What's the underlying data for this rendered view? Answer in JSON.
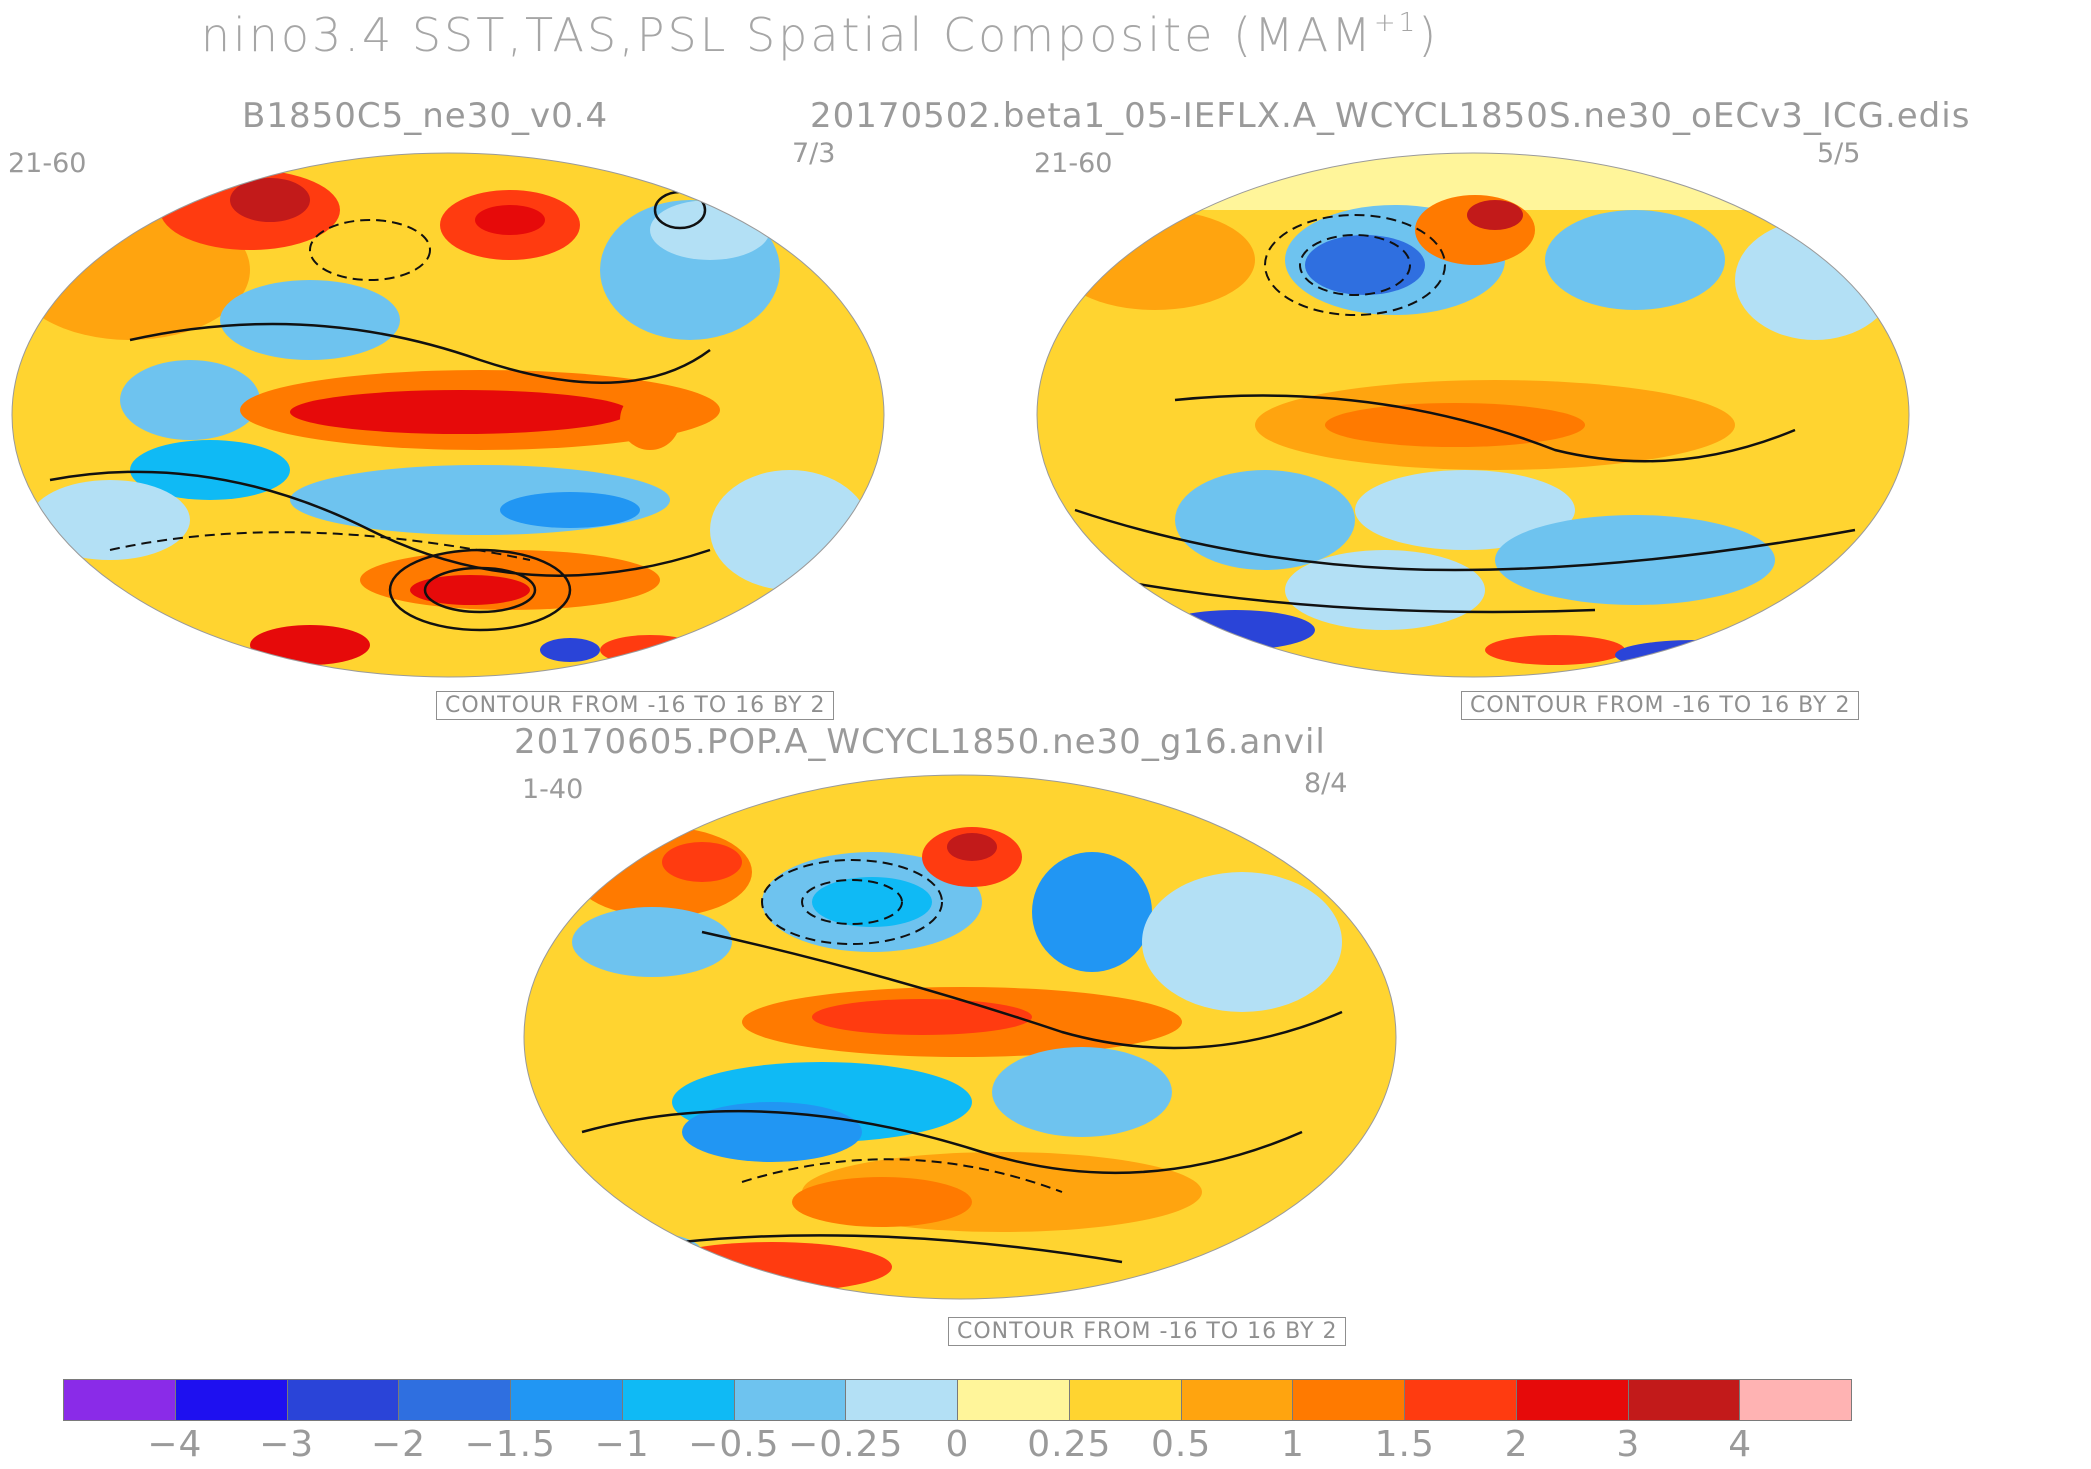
{
  "figure": {
    "title": "nino3.4 SST,TAS,PSL Spatial Composite (MAM",
    "title_sup": "+1",
    "title_close": ")"
  },
  "panels": [
    {
      "title": "B1850C5_ne30_v0.4",
      "years": "21-60",
      "count": "7/3",
      "contour_label": "CONTOUR FROM -16 TO 16 BY 2"
    },
    {
      "title": "20170502.beta1_05-IEFLX.A_WCYCL1850S.ne30_oECv3_ICG.edis",
      "years": "21-60",
      "count": "5/5",
      "contour_label": "CONTOUR FROM -16 TO 16 BY 2"
    },
    {
      "title": "20170605.POP.A_WCYCL1850.ne30_g16.anvil",
      "years": "1-40",
      "count": "8/4",
      "contour_label": "CONTOUR FROM -16 TO 16 BY 2"
    }
  ],
  "colorbar": {
    "colors": [
      "#8a2be8",
      "#1e10f0",
      "#2a44d8",
      "#2f6fe0",
      "#2196f3",
      "#0fbaf5",
      "#6ec3ef",
      "#b3e0f5",
      "#fff59a",
      "#ffd430",
      "#ffa40f",
      "#ff7a00",
      "#ff3b10",
      "#e60a0a",
      "#c21a1a",
      "#ffb3b3"
    ],
    "ticks": [
      "-4",
      "-3",
      "-2",
      "-1.5",
      "-1",
      "-0.5",
      "-0.25",
      "0",
      "0.25",
      "0.5",
      "1",
      "1.5",
      "2",
      "3",
      "4"
    ]
  }
}
